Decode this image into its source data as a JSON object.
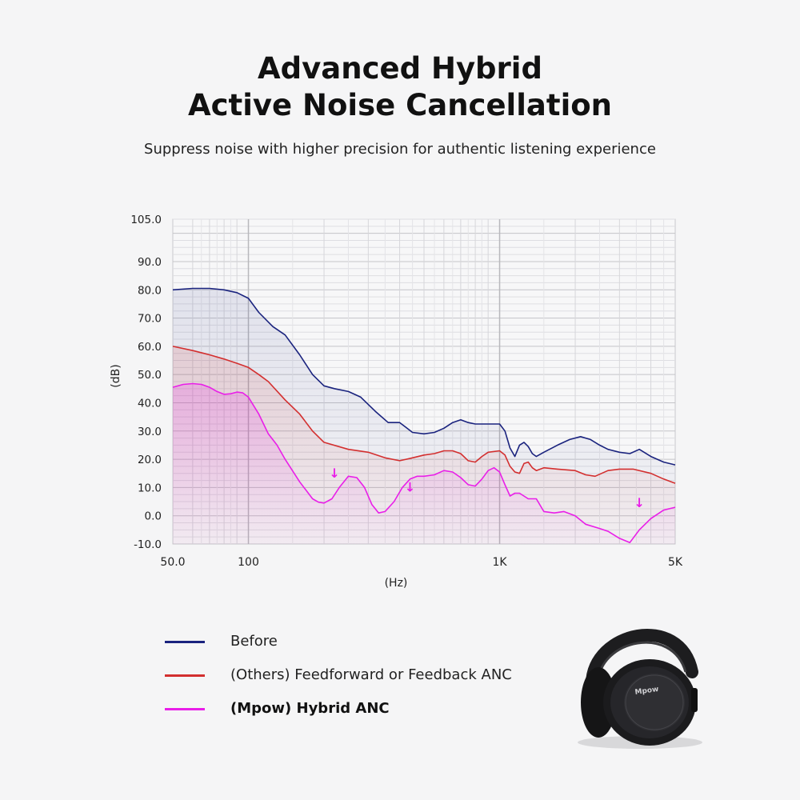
{
  "header": {
    "title_line1": "Advanced Hybrid",
    "title_line2": "Active Noise Cancellation",
    "subtitle": "Suppress noise with higher precision for authentic listening experience"
  },
  "chart_data": {
    "type": "line",
    "title": "",
    "xlabel": "(Hz)",
    "ylabel": "(dB)",
    "xscale": "log",
    "xlim": [
      50,
      5000
    ],
    "ylim": [
      -10,
      105
    ],
    "grid": true,
    "x_ticks": [
      {
        "value": 50,
        "label": "50.0"
      },
      {
        "value": 100,
        "label": "100"
      },
      {
        "value": 1000,
        "label": "1K"
      },
      {
        "value": 5000,
        "label": "5K"
      }
    ],
    "y_ticks": [
      {
        "value": 105,
        "label": "105.0"
      },
      {
        "value": 90,
        "label": "90.0"
      },
      {
        "value": 80,
        "label": "80.0"
      },
      {
        "value": 70,
        "label": "70.0"
      },
      {
        "value": 60,
        "label": "60.0"
      },
      {
        "value": 50,
        "label": "50.0"
      },
      {
        "value": 40,
        "label": "40.0"
      },
      {
        "value": 30,
        "label": "30.0"
      },
      {
        "value": 20,
        "label": "20.0"
      },
      {
        "value": 10,
        "label": "10.0"
      },
      {
        "value": 0,
        "label": "0.0"
      },
      {
        "value": -10,
        "label": "-10.0"
      }
    ],
    "series": [
      {
        "name": "Before",
        "color": "#1a237e",
        "points": [
          [
            50,
            80
          ],
          [
            60,
            80.5
          ],
          [
            70,
            80.5
          ],
          [
            80,
            80
          ],
          [
            90,
            79
          ],
          [
            100,
            77
          ],
          [
            110,
            72
          ],
          [
            125,
            67
          ],
          [
            140,
            64
          ],
          [
            160,
            57
          ],
          [
            180,
            50
          ],
          [
            200,
            46
          ],
          [
            220,
            45
          ],
          [
            250,
            44
          ],
          [
            280,
            42
          ],
          [
            320,
            37
          ],
          [
            360,
            33
          ],
          [
            400,
            33
          ],
          [
            450,
            29.5
          ],
          [
            500,
            29
          ],
          [
            550,
            29.5
          ],
          [
            600,
            31
          ],
          [
            650,
            33
          ],
          [
            700,
            34
          ],
          [
            750,
            33
          ],
          [
            800,
            32.5
          ],
          [
            900,
            32.5
          ],
          [
            1000,
            32.5
          ],
          [
            1050,
            30
          ],
          [
            1100,
            24
          ],
          [
            1150,
            21
          ],
          [
            1200,
            25
          ],
          [
            1250,
            26
          ],
          [
            1300,
            24.5
          ],
          [
            1350,
            22
          ],
          [
            1400,
            21
          ],
          [
            1500,
            22.5
          ],
          [
            1700,
            25
          ],
          [
            1900,
            27
          ],
          [
            2100,
            28
          ],
          [
            2300,
            27
          ],
          [
            2500,
            25
          ],
          [
            2700,
            23.5
          ],
          [
            3000,
            22.5
          ],
          [
            3300,
            22
          ],
          [
            3600,
            23.5
          ],
          [
            4000,
            21
          ],
          [
            4500,
            19
          ],
          [
            5000,
            18
          ]
        ]
      },
      {
        "name": "(Others)  Feedforward or Feedback ANC",
        "color": "#d32f2f",
        "points": [
          [
            50,
            60
          ],
          [
            60,
            58.5
          ],
          [
            70,
            57
          ],
          [
            80,
            55.5
          ],
          [
            90,
            54
          ],
          [
            100,
            52.5
          ],
          [
            110,
            50
          ],
          [
            120,
            47.5
          ],
          [
            140,
            41
          ],
          [
            160,
            36
          ],
          [
            180,
            30
          ],
          [
            200,
            26
          ],
          [
            250,
            23.5
          ],
          [
            300,
            22.5
          ],
          [
            350,
            20.5
          ],
          [
            400,
            19.5
          ],
          [
            450,
            20.5
          ],
          [
            500,
            21.5
          ],
          [
            550,
            22
          ],
          [
            600,
            23
          ],
          [
            650,
            23
          ],
          [
            700,
            22
          ],
          [
            750,
            19.5
          ],
          [
            800,
            19
          ],
          [
            850,
            21
          ],
          [
            900,
            22.5
          ],
          [
            1000,
            23
          ],
          [
            1050,
            21.5
          ],
          [
            1100,
            17.5
          ],
          [
            1150,
            15.5
          ],
          [
            1200,
            15
          ],
          [
            1250,
            18.5
          ],
          [
            1300,
            19
          ],
          [
            1350,
            17
          ],
          [
            1400,
            16
          ],
          [
            1500,
            17
          ],
          [
            1700,
            16.5
          ],
          [
            2000,
            16
          ],
          [
            2200,
            14.5
          ],
          [
            2400,
            14
          ],
          [
            2700,
            16
          ],
          [
            3000,
            16.5
          ],
          [
            3400,
            16.5
          ],
          [
            4000,
            15
          ],
          [
            4500,
            13
          ],
          [
            5000,
            11.5
          ]
        ]
      },
      {
        "name": "(Mpow)  Hybrid ANC",
        "color": "#e91ee8",
        "points": [
          [
            50,
            45.5
          ],
          [
            55,
            46.5
          ],
          [
            60,
            46.8
          ],
          [
            65,
            46.5
          ],
          [
            70,
            45.5
          ],
          [
            75,
            44
          ],
          [
            80,
            43
          ],
          [
            85,
            43.2
          ],
          [
            90,
            43.8
          ],
          [
            95,
            43.5
          ],
          [
            100,
            42
          ],
          [
            110,
            36
          ],
          [
            120,
            29
          ],
          [
            130,
            25
          ],
          [
            140,
            20
          ],
          [
            160,
            12
          ],
          [
            180,
            6
          ],
          [
            190,
            4.8
          ],
          [
            200,
            4.5
          ],
          [
            215,
            6
          ],
          [
            230,
            10
          ],
          [
            250,
            14
          ],
          [
            270,
            13.5
          ],
          [
            290,
            10
          ],
          [
            310,
            4
          ],
          [
            330,
            1
          ],
          [
            350,
            1.5
          ],
          [
            380,
            5
          ],
          [
            410,
            10
          ],
          [
            440,
            13
          ],
          [
            470,
            14
          ],
          [
            500,
            14
          ],
          [
            550,
            14.5
          ],
          [
            600,
            16
          ],
          [
            650,
            15.5
          ],
          [
            700,
            13.5
          ],
          [
            750,
            11
          ],
          [
            800,
            10.5
          ],
          [
            850,
            13
          ],
          [
            900,
            16
          ],
          [
            950,
            17
          ],
          [
            1000,
            15.5
          ],
          [
            1050,
            11
          ],
          [
            1100,
            7
          ],
          [
            1150,
            8
          ],
          [
            1200,
            8
          ],
          [
            1300,
            6
          ],
          [
            1400,
            6
          ],
          [
            1500,
            1.5
          ],
          [
            1650,
            1
          ],
          [
            1800,
            1.5
          ],
          [
            2000,
            0
          ],
          [
            2200,
            -3
          ],
          [
            2500,
            -4.5
          ],
          [
            2700,
            -5.5
          ],
          [
            3000,
            -8
          ],
          [
            3300,
            -9.5
          ],
          [
            3600,
            -5
          ],
          [
            4000,
            -1
          ],
          [
            4500,
            2
          ],
          [
            5000,
            3
          ]
        ]
      }
    ],
    "markers": [
      {
        "x": 220,
        "y": 13.5,
        "label": "↓"
      },
      {
        "x": 440,
        "y": 8.5,
        "label": "↓"
      },
      {
        "x": 3600,
        "y": 3,
        "label": "↓"
      }
    ]
  },
  "legend": {
    "items": [
      {
        "label": "Before",
        "color": "#1a237e",
        "bold": false
      },
      {
        "label": "(Others)  Feedforward or Feedback ANC",
        "color": "#d32f2f",
        "bold": false
      },
      {
        "label": "(Mpow)  Hybrid ANC",
        "color": "#e91ee8",
        "bold": true
      }
    ]
  },
  "product": {
    "name": "headphones-image",
    "brand_mark": "Mpow"
  }
}
